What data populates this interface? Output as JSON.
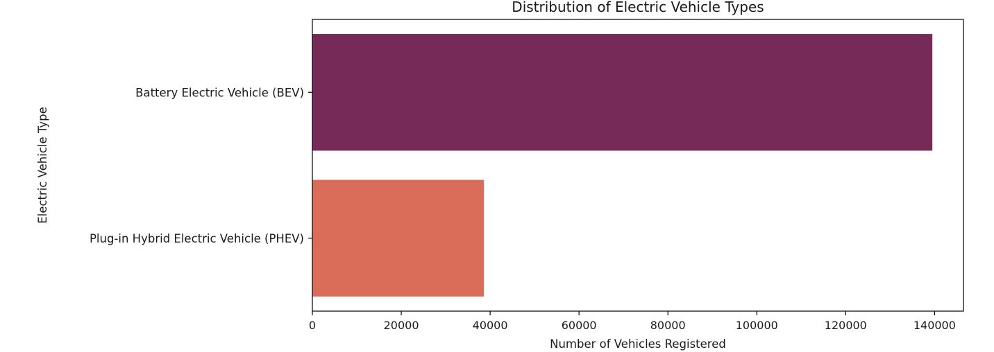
{
  "chart_data": {
    "type": "bar",
    "orientation": "horizontal",
    "title": "Distribution of Electric Vehicle Types",
    "xlabel": "Number of Vehicles Registered",
    "ylabel": "Electric Vehicle Type",
    "categories": [
      "Battery Electric Vehicle (BEV)",
      "Plug-in Hybrid Electric Vehicle (PHEV)"
    ],
    "values": [
      139500,
      38600
    ],
    "colors": [
      "#762a57",
      "#d96d5a"
    ],
    "xlim": [
      0,
      146500
    ],
    "xticks": [
      0,
      20000,
      40000,
      60000,
      80000,
      100000,
      120000,
      140000
    ],
    "xtick_labels": [
      "0",
      "20000",
      "40000",
      "60000",
      "80000",
      "100000",
      "120000",
      "140000"
    ],
    "grid": false,
    "legend": false
  }
}
